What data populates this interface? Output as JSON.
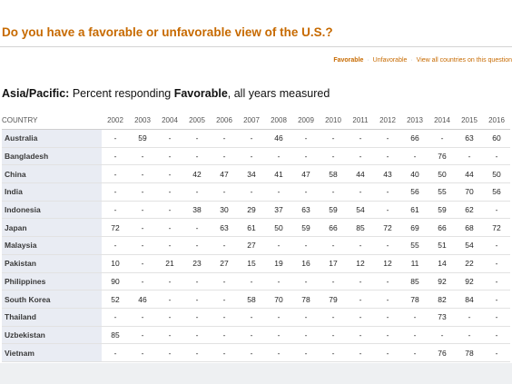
{
  "header": {
    "question": "Do you have a favorable or unfavorable view of the U.S.?",
    "links": {
      "favorable": "Favorable",
      "separator": "·",
      "unfavorable": "Unfavorable",
      "view_all": "View all countries on this question"
    }
  },
  "subtitle": {
    "region": "Asia/Pacific:",
    "prefix": "Percent responding",
    "measure": "Favorable",
    "suffix": ", all years measured"
  },
  "chart_data": {
    "type": "table",
    "row_header": "COUNTRY",
    "columns": [
      "2002",
      "2003",
      "2004",
      "2005",
      "2006",
      "2007",
      "2008",
      "2009",
      "2010",
      "2011",
      "2012",
      "2013",
      "2014",
      "2015",
      "2016"
    ],
    "rows": [
      {
        "country": "Australia",
        "values": [
          "-",
          "59",
          "-",
          "-",
          "-",
          "-",
          "46",
          "-",
          "-",
          "-",
          "-",
          "66",
          "-",
          "63",
          "60"
        ]
      },
      {
        "country": "Bangladesh",
        "values": [
          "-",
          "-",
          "-",
          "-",
          "-",
          "-",
          "-",
          "-",
          "-",
          "-",
          "-",
          "-",
          "76",
          "-",
          "-"
        ]
      },
      {
        "country": "China",
        "values": [
          "-",
          "-",
          "-",
          "42",
          "47",
          "34",
          "41",
          "47",
          "58",
          "44",
          "43",
          "40",
          "50",
          "44",
          "50"
        ]
      },
      {
        "country": "India",
        "values": [
          "-",
          "-",
          "-",
          "-",
          "-",
          "-",
          "-",
          "-",
          "-",
          "-",
          "-",
          "56",
          "55",
          "70",
          "56"
        ]
      },
      {
        "country": "Indonesia",
        "values": [
          "-",
          "-",
          "-",
          "38",
          "30",
          "29",
          "37",
          "63",
          "59",
          "54",
          "-",
          "61",
          "59",
          "62",
          "-"
        ]
      },
      {
        "country": "Japan",
        "values": [
          "72",
          "-",
          "-",
          "-",
          "63",
          "61",
          "50",
          "59",
          "66",
          "85",
          "72",
          "69",
          "66",
          "68",
          "72"
        ]
      },
      {
        "country": "Malaysia",
        "values": [
          "-",
          "-",
          "-",
          "-",
          "-",
          "27",
          "-",
          "-",
          "-",
          "-",
          "-",
          "55",
          "51",
          "54",
          "-"
        ]
      },
      {
        "country": "Pakistan",
        "values": [
          "10",
          "-",
          "21",
          "23",
          "27",
          "15",
          "19",
          "16",
          "17",
          "12",
          "12",
          "11",
          "14",
          "22",
          "-"
        ]
      },
      {
        "country": "Philippines",
        "values": [
          "90",
          "-",
          "-",
          "-",
          "-",
          "-",
          "-",
          "-",
          "-",
          "-",
          "-",
          "85",
          "92",
          "92",
          "-"
        ]
      },
      {
        "country": "South Korea",
        "values": [
          "52",
          "46",
          "-",
          "-",
          "-",
          "58",
          "70",
          "78",
          "79",
          "-",
          "-",
          "78",
          "82",
          "84",
          "-"
        ]
      },
      {
        "country": "Thailand",
        "values": [
          "-",
          "-",
          "-",
          "-",
          "-",
          "-",
          "-",
          "-",
          "-",
          "-",
          "-",
          "-",
          "73",
          "-",
          "-"
        ]
      },
      {
        "country": "Uzbekistan",
        "values": [
          "85",
          "-",
          "-",
          "-",
          "-",
          "-",
          "-",
          "-",
          "-",
          "-",
          "-",
          "-",
          "-",
          "-",
          "-"
        ]
      },
      {
        "country": "Vietnam",
        "values": [
          "-",
          "-",
          "-",
          "-",
          "-",
          "-",
          "-",
          "-",
          "-",
          "-",
          "-",
          "-",
          "76",
          "78",
          "-"
        ]
      }
    ]
  }
}
